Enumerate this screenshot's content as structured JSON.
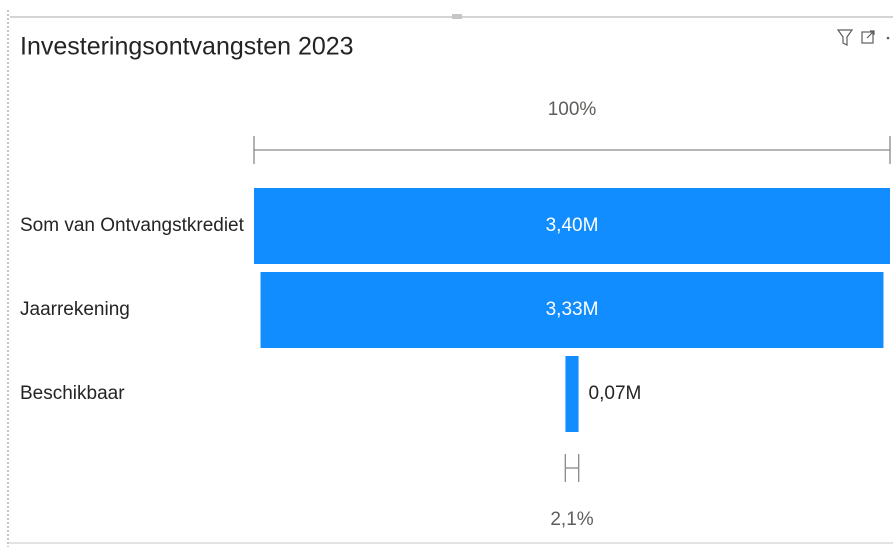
{
  "chart_data": {
    "type": "funnel",
    "title": "Investeringsontvangsten 2023",
    "categories": [
      "Som van Ontvangstkrediet",
      "Jaarrekening",
      "Beschikbaar"
    ],
    "values": [
      3400000,
      3330000,
      70000
    ],
    "value_labels": [
      "3,40M",
      "3,33M",
      "0,07M"
    ],
    "color": "#118dff",
    "top_percent": {
      "value": 100,
      "label": "100%"
    },
    "bottom_percent": {
      "value": 2.1,
      "label": "2,1%"
    }
  }
}
